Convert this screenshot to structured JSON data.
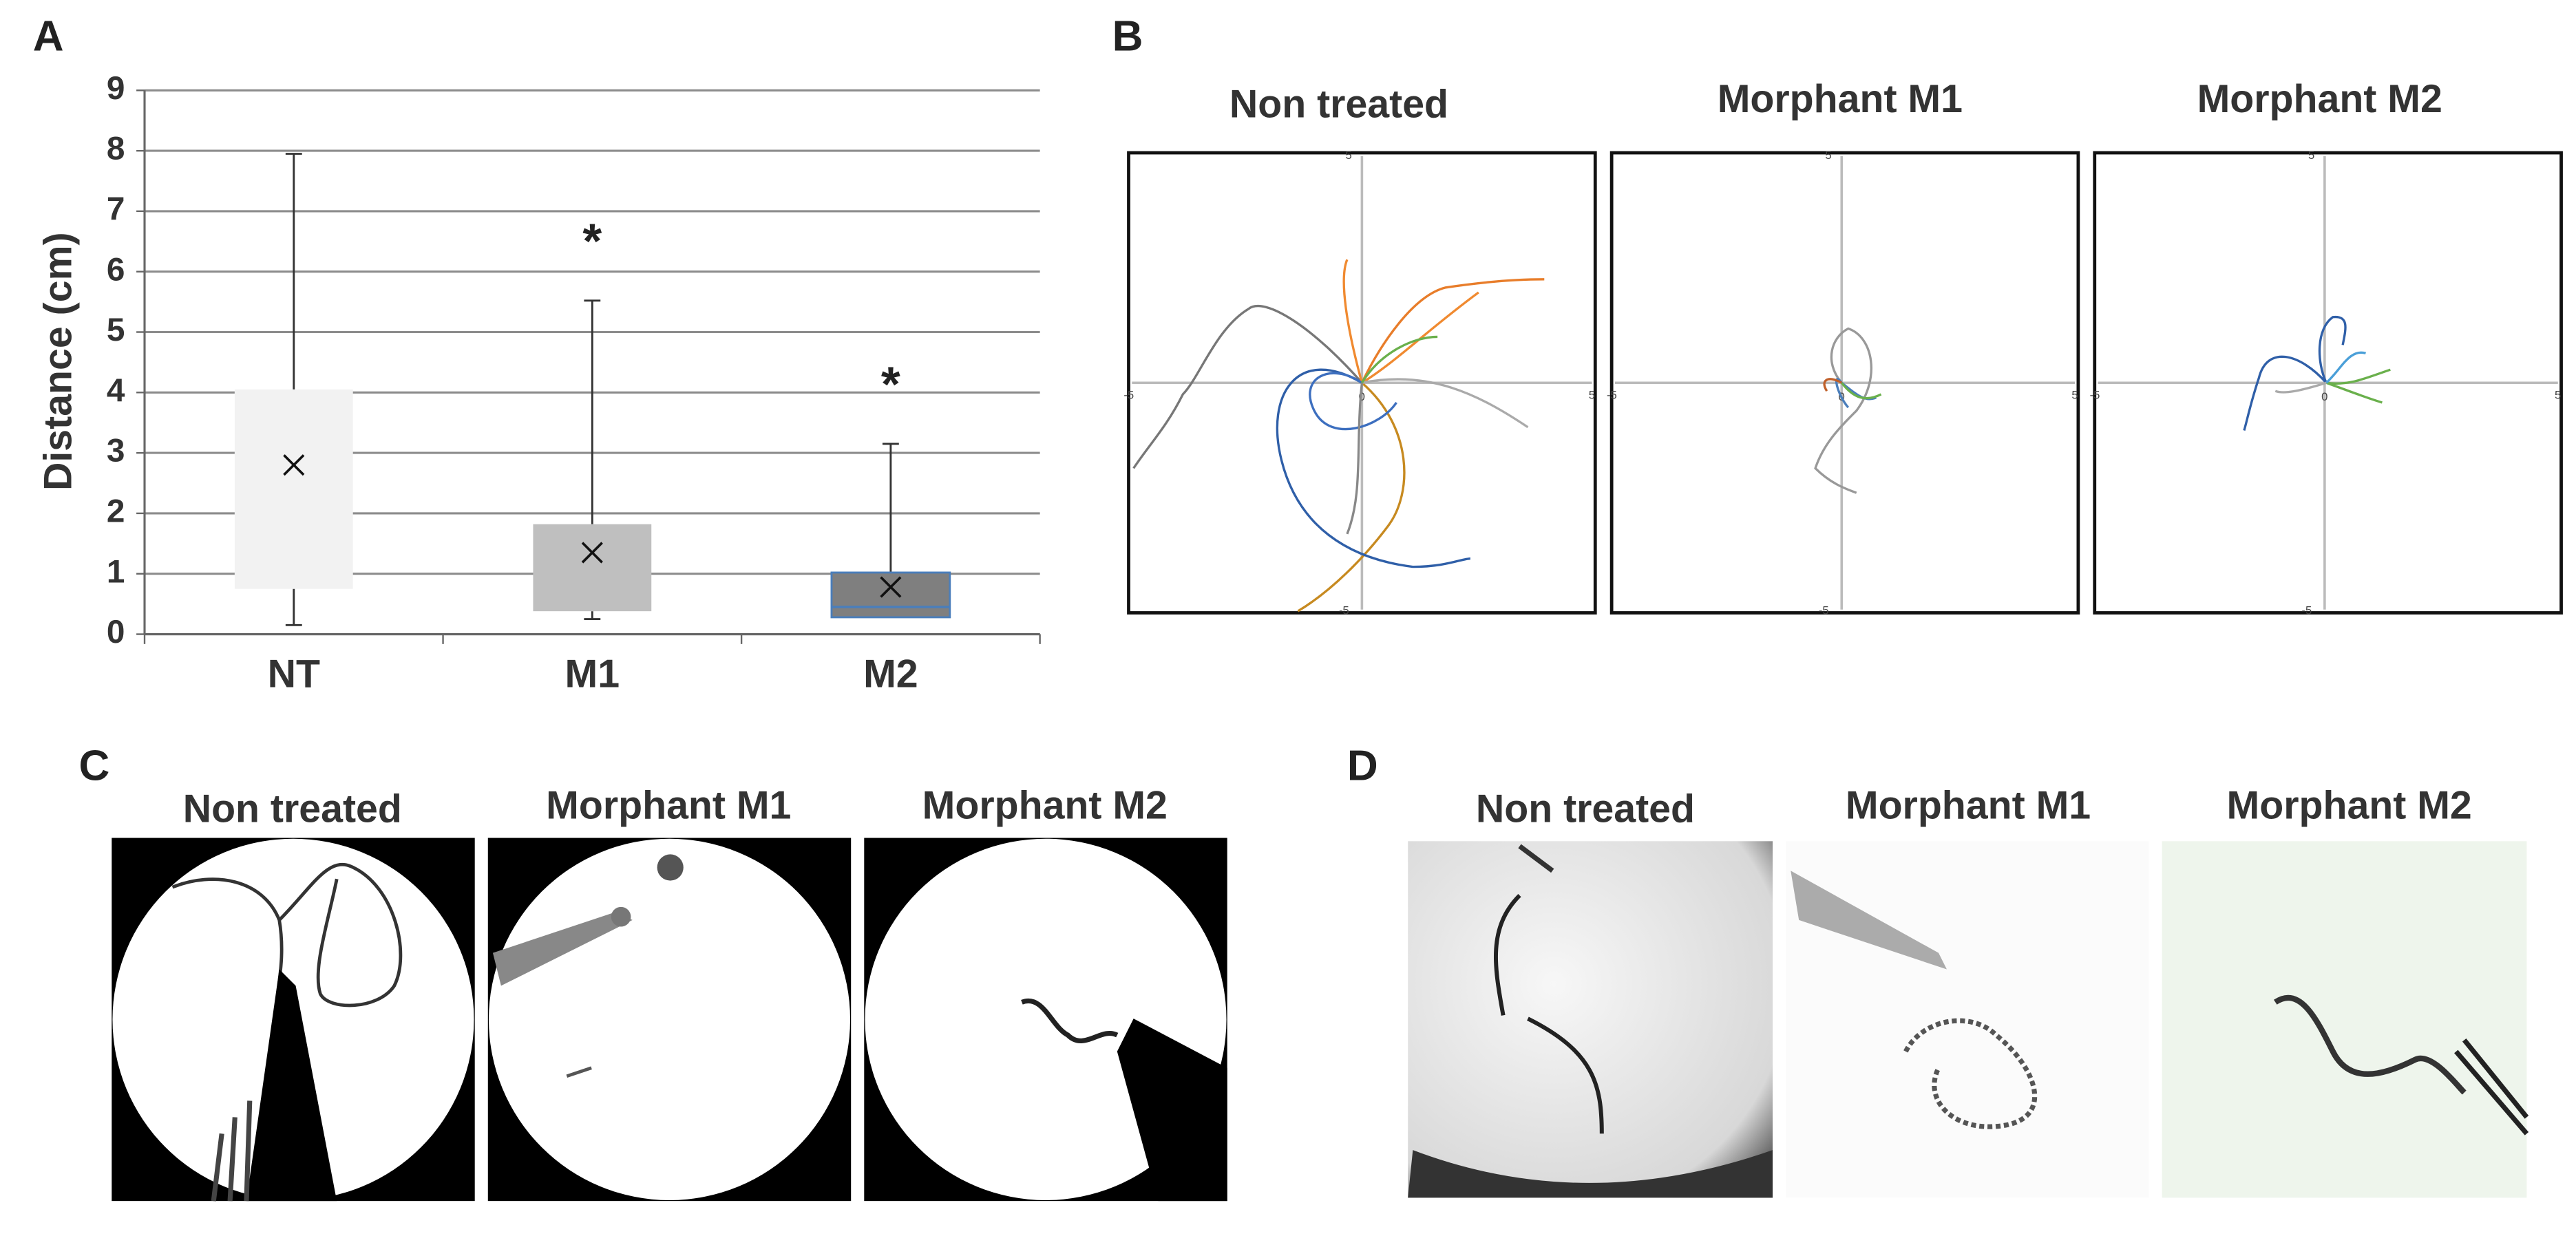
{
  "panel_labels": [
    "A",
    "B",
    "C",
    "D"
  ],
  "chart_data": {
    "type": "box",
    "y_label": "Distance (cm)",
    "categories": [
      "NT",
      "M1",
      "M2"
    ],
    "min": [
      0.15,
      0.25,
      0.3
    ],
    "q1": [
      0.75,
      0.38,
      0.28
    ],
    "median": [
      null,
      null,
      0.45
    ],
    "q3": [
      4.05,
      1.82,
      1.02
    ],
    "max": [
      7.95,
      5.52,
      3.15
    ],
    "mean": [
      2.8,
      1.35,
      0.78
    ],
    "colors": [
      "#f2f2f2",
      "#bfbfbf",
      "#7f7f7f"
    ],
    "ylim": [
      0,
      9
    ],
    "yticks": [
      0,
      1,
      2,
      3,
      4,
      5,
      6,
      7,
      8,
      9
    ],
    "grid": true,
    "annotations": [
      {
        "text": "*",
        "category": 1
      },
      {
        "text": "*",
        "category": 2
      }
    ]
  },
  "trajectory_panel": {
    "titles": [
      "Non treated",
      "Morphant M1",
      "Morphant M2"
    ],
    "axis_labels": {
      "top": "5",
      "bottom": "-5",
      "left": "-5",
      "right": "5",
      "center": "0"
    }
  },
  "video_panel": {
    "titles": [
      "Non treated",
      "Morphant M1",
      "Morphant M2"
    ]
  },
  "photo_panel": {
    "titles": [
      "Non treated",
      "Morphant M1",
      "Morphant M2"
    ]
  }
}
